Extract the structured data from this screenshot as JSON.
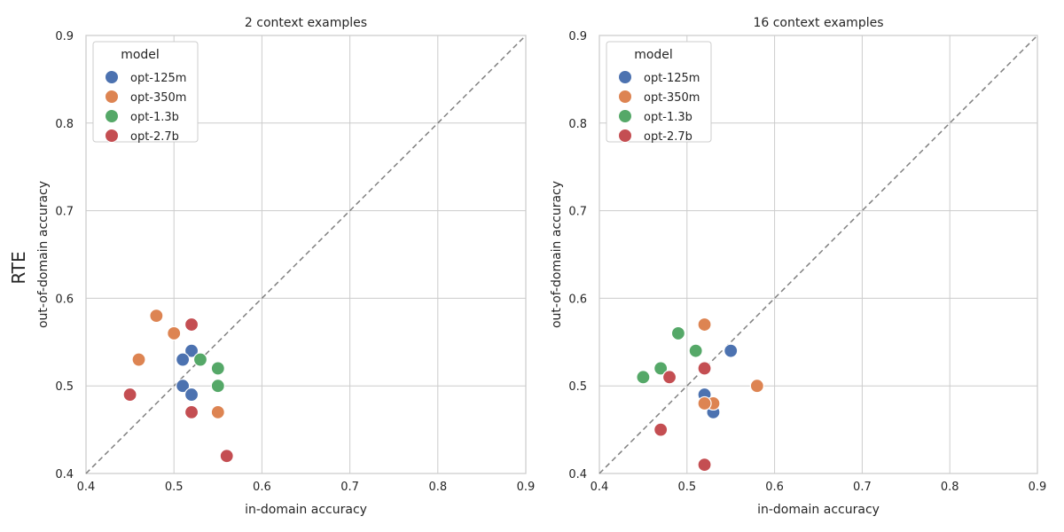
{
  "row_label": "RTE",
  "chart_data": [
    {
      "type": "scatter",
      "title": "2 context examples",
      "xlabel": "in-domain accuracy",
      "ylabel": "out-of-domain accuracy",
      "xlim": [
        0.4,
        0.9
      ],
      "ylim": [
        0.4,
        0.9
      ],
      "xticks": [
        "0.4",
        "0.5",
        "0.6",
        "0.7",
        "0.8",
        "0.9"
      ],
      "yticks": [
        "0.4",
        "0.5",
        "0.6",
        "0.7",
        "0.8",
        "0.9"
      ],
      "grid": true,
      "diagonal": "y = x dashed",
      "legend": {
        "title": "model",
        "placement": "top-left"
      },
      "series": [
        {
          "name": "opt-125m",
          "color": "#4c72b0",
          "points": [
            [
              0.52,
              0.54
            ],
            [
              0.51,
              0.53
            ],
            [
              0.51,
              0.5
            ],
            [
              0.52,
              0.49
            ]
          ]
        },
        {
          "name": "opt-350m",
          "color": "#dd8452",
          "points": [
            [
              0.48,
              0.58
            ],
            [
              0.5,
              0.56
            ],
            [
              0.46,
              0.53
            ],
            [
              0.55,
              0.47
            ]
          ]
        },
        {
          "name": "opt-1.3b",
          "color": "#55a868",
          "points": [
            [
              0.53,
              0.53
            ],
            [
              0.55,
              0.52
            ],
            [
              0.55,
              0.5
            ]
          ]
        },
        {
          "name": "opt-2.7b",
          "color": "#c44e52",
          "points": [
            [
              0.52,
              0.57
            ],
            [
              0.45,
              0.49
            ],
            [
              0.52,
              0.47
            ],
            [
              0.56,
              0.42
            ]
          ]
        }
      ]
    },
    {
      "type": "scatter",
      "title": "16 context examples",
      "xlabel": "in-domain accuracy",
      "ylabel": "out-of-domain accuracy",
      "xlim": [
        0.4,
        0.9
      ],
      "ylim": [
        0.4,
        0.9
      ],
      "xticks": [
        "0.4",
        "0.5",
        "0.6",
        "0.7",
        "0.8",
        "0.9"
      ],
      "yticks": [
        "0.4",
        "0.5",
        "0.6",
        "0.7",
        "0.8",
        "0.9"
      ],
      "grid": true,
      "diagonal": "y = x dashed",
      "legend": {
        "title": "model",
        "placement": "top-left"
      },
      "series": [
        {
          "name": "opt-125m",
          "color": "#4c72b0",
          "points": [
            [
              0.55,
              0.54
            ],
            [
              0.52,
              0.49
            ],
            [
              0.53,
              0.47
            ]
          ]
        },
        {
          "name": "opt-350m",
          "color": "#dd8452",
          "points": [
            [
              0.52,
              0.57
            ],
            [
              0.58,
              0.5
            ],
            [
              0.53,
              0.48
            ],
            [
              0.52,
              0.48
            ]
          ]
        },
        {
          "name": "opt-1.3b",
          "color": "#55a868",
          "points": [
            [
              0.49,
              0.56
            ],
            [
              0.51,
              0.54
            ],
            [
              0.47,
              0.52
            ],
            [
              0.45,
              0.51
            ]
          ]
        },
        {
          "name": "opt-2.7b",
          "color": "#c44e52",
          "points": [
            [
              0.52,
              0.52
            ],
            [
              0.48,
              0.51
            ],
            [
              0.47,
              0.45
            ],
            [
              0.52,
              0.41
            ]
          ]
        }
      ]
    }
  ]
}
